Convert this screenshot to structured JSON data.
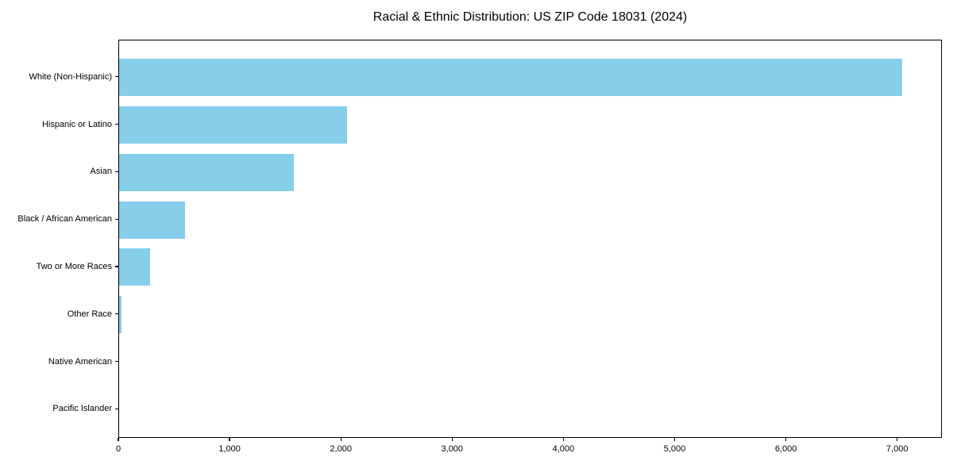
{
  "chart_data": {
    "type": "bar",
    "orientation": "horizontal",
    "title": "Racial & Ethnic Distribution: US ZIP Code 18031 (2024)",
    "categories": [
      "White (Non-Hispanic)",
      "Hispanic or Latino",
      "Asian",
      "Black / African American",
      "Two or More Races",
      "Other Race",
      "Native American",
      "Pacific Islander"
    ],
    "values": [
      7050,
      2055,
      1572,
      592,
      280,
      25,
      0,
      0
    ],
    "xlabel": "",
    "ylabel": "",
    "xlim": [
      0,
      7402
    ],
    "xticks": [
      0,
      1000,
      2000,
      3000,
      4000,
      5000,
      6000,
      7000
    ],
    "xtick_labels": [
      "0",
      "1,000",
      "2,000",
      "3,000",
      "4,000",
      "5,000",
      "6,000",
      "7,000"
    ],
    "bar_color": "#87CEEB",
    "frame_color": "#000000",
    "background_color": "#ffffff",
    "grid": false,
    "legend": false
  }
}
